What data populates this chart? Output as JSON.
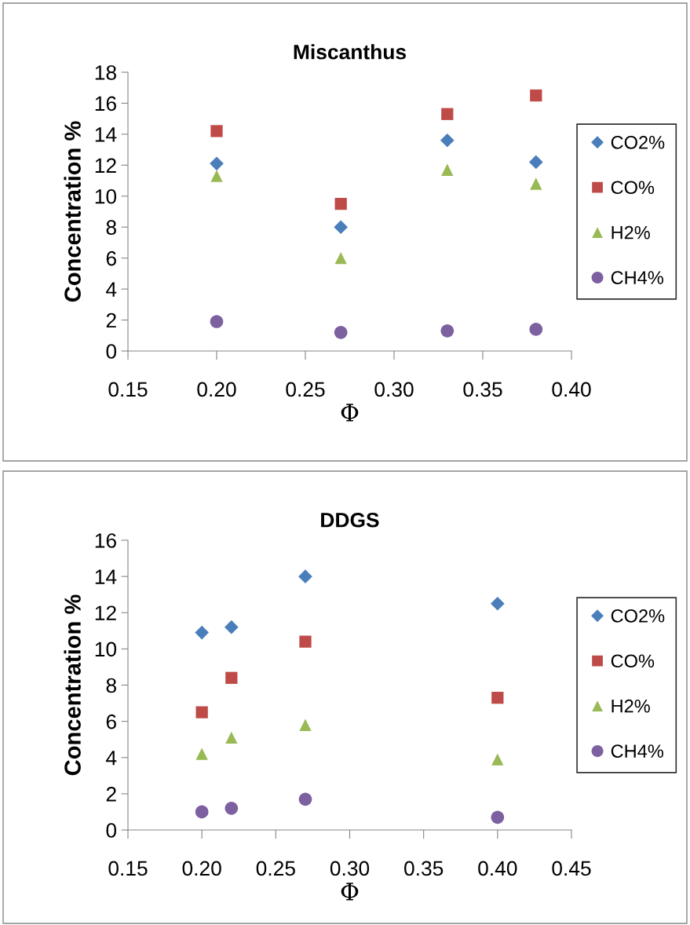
{
  "chart_data": [
    {
      "type": "scatter",
      "title": "Miscanthus",
      "xlabel": "Φ",
      "ylabel": "Concentration %",
      "legend": "right",
      "grid": false,
      "x": [
        0.2,
        0.27,
        0.33,
        0.38
      ],
      "xlim": [
        0.15,
        0.4
      ],
      "xticks": [
        {
          "value": 0.15,
          "label": "0.15"
        },
        {
          "value": 0.2,
          "label": "0.20"
        },
        {
          "value": 0.25,
          "label": "0.25"
        },
        {
          "value": 0.3,
          "label": "0.30"
        },
        {
          "value": 0.35,
          "label": "0.35"
        },
        {
          "value": 0.4,
          "label": "0.40"
        }
      ],
      "ylim": [
        0,
        18
      ],
      "yticks": [
        0,
        2,
        4,
        6,
        8,
        10,
        12,
        14,
        16,
        18
      ],
      "series": [
        {
          "name": "CO2%",
          "color": "#4a7ebb",
          "marker": "diamond",
          "values": [
            12.1,
            8.0,
            13.6,
            12.2
          ]
        },
        {
          "name": "CO%",
          "color": "#be4b48",
          "marker": "square",
          "values": [
            14.2,
            9.5,
            15.3,
            16.5
          ]
        },
        {
          "name": "H2%",
          "color": "#98b954",
          "marker": "triangle",
          "values": [
            11.3,
            6.0,
            11.7,
            10.8
          ]
        },
        {
          "name": "CH4%",
          "color": "#7d60a0",
          "marker": "circle",
          "values": [
            1.9,
            1.2,
            1.3,
            1.4
          ]
        }
      ]
    },
    {
      "type": "scatter",
      "title": "DDGS",
      "xlabel": "Φ",
      "ylabel": "Concentration %",
      "legend": "right",
      "grid": false,
      "x": [
        0.2,
        0.22,
        0.27,
        0.4
      ],
      "xlim": [
        0.15,
        0.45
      ],
      "xticks": [
        {
          "value": 0.15,
          "label": "0.15"
        },
        {
          "value": 0.2,
          "label": "0.20"
        },
        {
          "value": 0.25,
          "label": "0.25"
        },
        {
          "value": 0.3,
          "label": "0.30"
        },
        {
          "value": 0.35,
          "label": "0.35"
        },
        {
          "value": 0.4,
          "label": "0.40"
        },
        {
          "value": 0.45,
          "label": "0.45"
        }
      ],
      "ylim": [
        0,
        16
      ],
      "yticks": [
        0,
        2,
        4,
        6,
        8,
        10,
        12,
        14,
        16
      ],
      "series": [
        {
          "name": "CO2%",
          "color": "#4a7ebb",
          "marker": "diamond",
          "values": [
            10.9,
            11.2,
            14.0,
            12.5
          ]
        },
        {
          "name": "CO%",
          "color": "#be4b48",
          "marker": "square",
          "values": [
            6.5,
            8.4,
            10.4,
            7.3
          ]
        },
        {
          "name": "H2%",
          "color": "#98b954",
          "marker": "triangle",
          "values": [
            4.2,
            5.1,
            5.8,
            3.9
          ]
        },
        {
          "name": "CH4%",
          "color": "#7d60a0",
          "marker": "circle",
          "values": [
            1.0,
            1.2,
            1.7,
            0.7
          ]
        }
      ]
    }
  ]
}
